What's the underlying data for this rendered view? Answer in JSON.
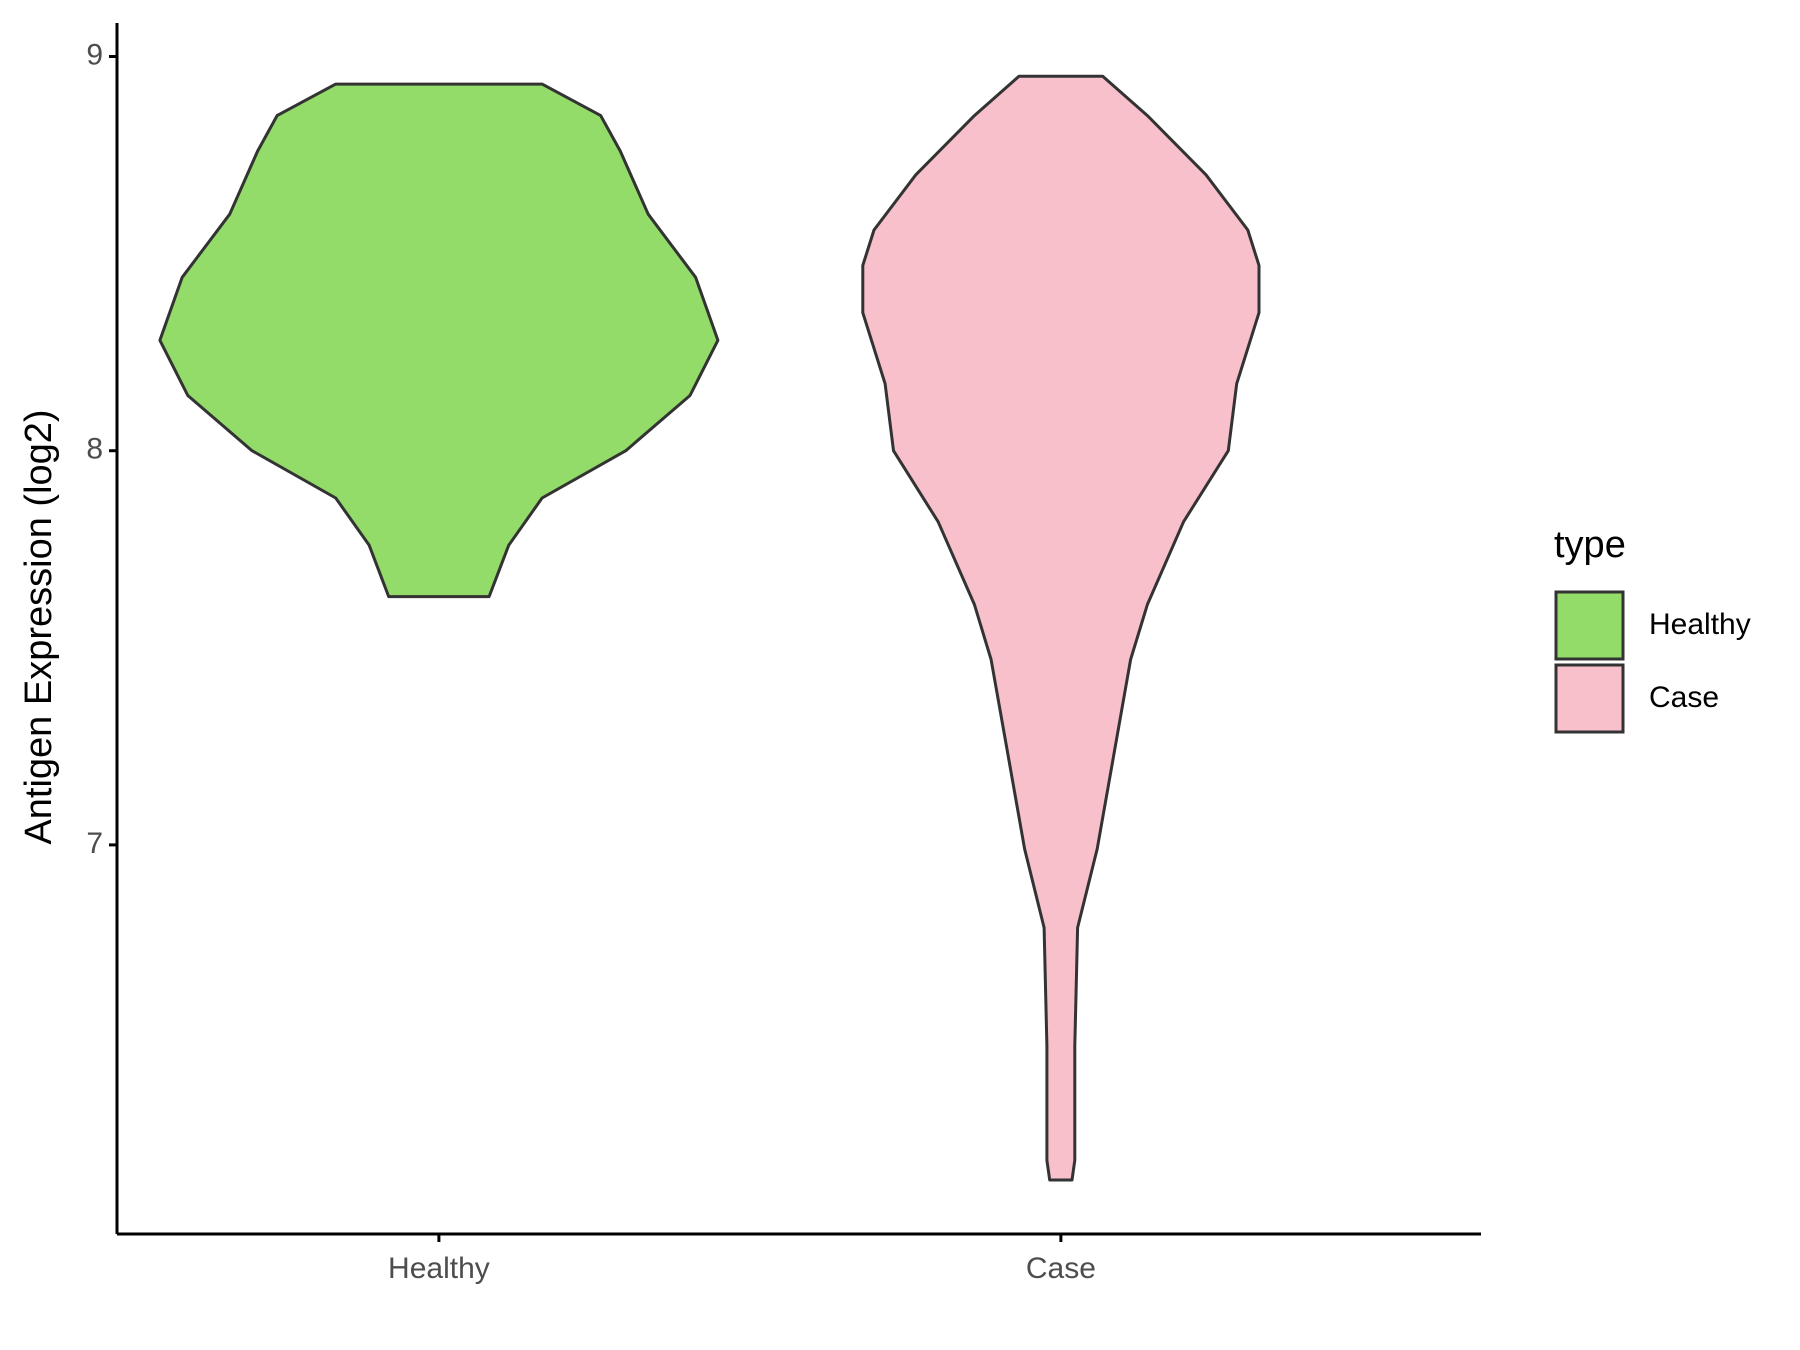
{
  "chart_data": {
    "type": "violin",
    "y_label": "Antigen Expression (log2)",
    "categories": [
      "Healthy",
      "Case"
    ],
    "legend_title": "type",
    "series": [
      {
        "name": "Healthy",
        "color": "#93dc6a",
        "y": [
          8.93,
          8.85,
          8.76,
          8.6,
          8.44,
          8.28,
          8.14,
          8.0,
          7.88,
          7.76,
          7.63
        ],
        "density": [
          0.37,
          0.58,
          0.65,
          0.75,
          0.92,
          1.0,
          0.9,
          0.67,
          0.37,
          0.25,
          0.18
        ]
      },
      {
        "name": "Case",
        "color": "#f7c0cb",
        "y": [
          8.95,
          8.85,
          8.7,
          8.56,
          8.47,
          8.35,
          8.17,
          8.0,
          7.82,
          7.61,
          7.47,
          7.23,
          6.99,
          6.79,
          6.49,
          6.2,
          6.15
        ],
        "density": [
          0.15,
          0.31,
          0.52,
          0.67,
          0.71,
          0.71,
          0.63,
          0.6,
          0.44,
          0.31,
          0.25,
          0.19,
          0.13,
          0.06,
          0.05,
          0.05,
          0.04
        ]
      }
    ],
    "ylim": [
      6.013,
      9.085
    ],
    "yticks": [
      7,
      8,
      9
    ]
  }
}
